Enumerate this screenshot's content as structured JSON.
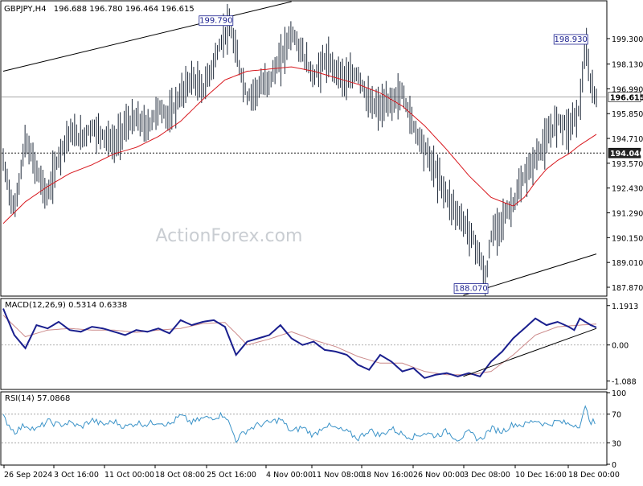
{
  "header": {
    "symbol": "GBPJPY,H4",
    "ohlc": "196.688 196.780 196.464 196.615"
  },
  "watermark": "ActionForex.com",
  "colors": {
    "price_bars": "#1f2a3a",
    "moving_average": "#d8191f",
    "trendline": "#000000",
    "macd_line": "#1a1f8e",
    "signal_line": "#cc8a8a",
    "rsi_line": "#3b93c8",
    "watermark": "#c9cdd2"
  },
  "chart_data": [
    {
      "name": "price",
      "type": "ohlc",
      "ylim": [
        187.5,
        201.0
      ],
      "y_ticks": [
        "199.300",
        "198.130",
        "196.990",
        "195.850",
        "194.710",
        "193.570",
        "192.430",
        "191.290",
        "190.150",
        "189.010",
        "187.870"
      ],
      "current_price_label": "196.615",
      "support_level_label": "194.040",
      "annotations": [
        "199.790",
        "198.930",
        "188.070"
      ],
      "close_series": [
        [
          0,
          193.6
        ],
        [
          2,
          191.3
        ],
        [
          4,
          194.6
        ],
        [
          6,
          193.3
        ],
        [
          8,
          192.0
        ],
        [
          10,
          193.9
        ],
        [
          12,
          195.0
        ],
        [
          14,
          194.7
        ],
        [
          16,
          195.2
        ],
        [
          18,
          194.9
        ],
        [
          20,
          194.4
        ],
        [
          22,
          195.3
        ],
        [
          24,
          195.6
        ],
        [
          26,
          195.2
        ],
        [
          28,
          196.1
        ],
        [
          30,
          195.7
        ],
        [
          32,
          196.7
        ],
        [
          34,
          197.5
        ],
        [
          36,
          196.9
        ],
        [
          38,
          198.2
        ],
        [
          40,
          199.6
        ],
        [
          41,
          199.79
        ],
        [
          42,
          198.6
        ],
        [
          44,
          196.6
        ],
        [
          46,
          197.0
        ],
        [
          48,
          197.4
        ],
        [
          50,
          198.3
        ],
        [
          52,
          199.6
        ],
        [
          54,
          198.6
        ],
        [
          56,
          197.5
        ],
        [
          58,
          198.3
        ],
        [
          60,
          197.9
        ],
        [
          62,
          197.4
        ],
        [
          64,
          197.7
        ],
        [
          66,
          196.3
        ],
        [
          68,
          196.1
        ],
        [
          70,
          196.4
        ],
        [
          72,
          196.8
        ],
        [
          74,
          195.3
        ],
        [
          76,
          194.3
        ],
        [
          78,
          193.2
        ],
        [
          80,
          192.1
        ],
        [
          82,
          191.2
        ],
        [
          84,
          190.5
        ],
        [
          86,
          189.3
        ],
        [
          87,
          188.07
        ],
        [
          88,
          190.2
        ],
        [
          90,
          191.0
        ],
        [
          92,
          191.7
        ],
        [
          94,
          192.9
        ],
        [
          96,
          193.8
        ],
        [
          98,
          194.6
        ],
        [
          100,
          195.6
        ],
        [
          102,
          195.2
        ],
        [
          104,
          196.1
        ],
        [
          105,
          198.93
        ],
        [
          106,
          197.1
        ],
        [
          107,
          196.615
        ]
      ],
      "moving_average": [
        [
          0,
          190.8
        ],
        [
          4,
          191.8
        ],
        [
          8,
          192.5
        ],
        [
          12,
          193.1
        ],
        [
          16,
          193.5
        ],
        [
          20,
          194.0
        ],
        [
          24,
          194.3
        ],
        [
          28,
          194.8
        ],
        [
          32,
          195.5
        ],
        [
          36,
          196.5
        ],
        [
          40,
          197.4
        ],
        [
          44,
          197.8
        ],
        [
          48,
          197.9
        ],
        [
          52,
          198.0
        ],
        [
          56,
          197.8
        ],
        [
          60,
          197.5
        ],
        [
          64,
          197.2
        ],
        [
          68,
          196.8
        ],
        [
          72,
          196.2
        ],
        [
          76,
          195.3
        ],
        [
          80,
          194.2
        ],
        [
          84,
          193.0
        ],
        [
          88,
          192.0
        ],
        [
          90,
          191.8
        ],
        [
          92,
          191.6
        ],
        [
          94,
          192.0
        ],
        [
          96,
          192.7
        ],
        [
          98,
          193.3
        ],
        [
          100,
          193.7
        ],
        [
          102,
          194.0
        ],
        [
          104,
          194.4
        ],
        [
          107,
          194.9
        ]
      ],
      "trendlines": [
        {
          "from": [
            0,
            197.8
          ],
          "to": [
            52,
            201.0
          ]
        },
        {
          "from": [
            83,
            187.5
          ],
          "to": [
            107,
            189.4
          ]
        }
      ]
    },
    {
      "name": "MACD(12,26,9) 0.5314 0.6338",
      "type": "line",
      "ylim": [
        -1.32,
        1.38
      ],
      "y_ticks": [
        "1.1913",
        "0.00",
        "-1.088"
      ],
      "macd": [
        [
          0,
          1.1
        ],
        [
          2,
          0.3
        ],
        [
          4,
          -0.1
        ],
        [
          6,
          0.6
        ],
        [
          8,
          0.5
        ],
        [
          10,
          0.7
        ],
        [
          12,
          0.45
        ],
        [
          14,
          0.4
        ],
        [
          16,
          0.55
        ],
        [
          18,
          0.5
        ],
        [
          20,
          0.4
        ],
        [
          22,
          0.3
        ],
        [
          24,
          0.45
        ],
        [
          26,
          0.4
        ],
        [
          28,
          0.5
        ],
        [
          30,
          0.35
        ],
        [
          32,
          0.75
        ],
        [
          34,
          0.6
        ],
        [
          36,
          0.7
        ],
        [
          38,
          0.75
        ],
        [
          40,
          0.55
        ],
        [
          42,
          -0.3
        ],
        [
          44,
          0.1
        ],
        [
          46,
          0.2
        ],
        [
          48,
          0.3
        ],
        [
          50,
          0.6
        ],
        [
          52,
          0.2
        ],
        [
          54,
          0.0
        ],
        [
          56,
          0.1
        ],
        [
          58,
          -0.15
        ],
        [
          60,
          -0.2
        ],
        [
          62,
          -0.3
        ],
        [
          64,
          -0.6
        ],
        [
          66,
          -0.75
        ],
        [
          68,
          -0.3
        ],
        [
          70,
          -0.5
        ],
        [
          72,
          -0.8
        ],
        [
          74,
          -0.7
        ],
        [
          76,
          -1.0
        ],
        [
          78,
          -0.9
        ],
        [
          80,
          -0.85
        ],
        [
          82,
          -0.95
        ],
        [
          84,
          -0.85
        ],
        [
          86,
          -0.95
        ],
        [
          88,
          -0.5
        ],
        [
          90,
          -0.2
        ],
        [
          92,
          0.2
        ],
        [
          94,
          0.5
        ],
        [
          96,
          0.8
        ],
        [
          98,
          0.6
        ],
        [
          100,
          0.7
        ],
        [
          102,
          0.55
        ],
        [
          103,
          0.45
        ],
        [
          104,
          0.8
        ],
        [
          106,
          0.6
        ],
        [
          107,
          0.5314
        ]
      ],
      "signal": [
        [
          0,
          0.9
        ],
        [
          4,
          0.25
        ],
        [
          8,
          0.45
        ],
        [
          12,
          0.5
        ],
        [
          16,
          0.45
        ],
        [
          20,
          0.45
        ],
        [
          24,
          0.38
        ],
        [
          28,
          0.45
        ],
        [
          32,
          0.5
        ],
        [
          36,
          0.65
        ],
        [
          40,
          0.68
        ],
        [
          42,
          0.35
        ],
        [
          44,
          0.0
        ],
        [
          48,
          0.18
        ],
        [
          52,
          0.4
        ],
        [
          56,
          0.15
        ],
        [
          60,
          -0.05
        ],
        [
          64,
          -0.35
        ],
        [
          68,
          -0.55
        ],
        [
          72,
          -0.55
        ],
        [
          76,
          -0.8
        ],
        [
          80,
          -0.9
        ],
        [
          84,
          -0.9
        ],
        [
          88,
          -0.8
        ],
        [
          92,
          -0.3
        ],
        [
          96,
          0.3
        ],
        [
          100,
          0.55
        ],
        [
          104,
          0.6
        ],
        [
          107,
          0.6338
        ]
      ],
      "trendline": {
        "from": [
          83,
          -0.95
        ],
        "to": [
          107,
          0.5
        ]
      }
    },
    {
      "name": "RSI(14) 57.0868",
      "type": "line",
      "ylim": [
        0,
        100
      ],
      "y_ticks": [
        "100",
        "70",
        "30",
        "0"
      ],
      "levels": [
        70,
        30
      ],
      "rsi": [
        [
          0,
          66
        ],
        [
          2,
          45
        ],
        [
          4,
          55
        ],
        [
          6,
          48
        ],
        [
          8,
          60
        ],
        [
          10,
          55
        ],
        [
          12,
          58
        ],
        [
          14,
          52
        ],
        [
          16,
          62
        ],
        [
          18,
          55
        ],
        [
          20,
          60
        ],
        [
          22,
          52
        ],
        [
          24,
          58
        ],
        [
          26,
          56
        ],
        [
          28,
          60
        ],
        [
          30,
          55
        ],
        [
          32,
          68
        ],
        [
          34,
          58
        ],
        [
          36,
          64
        ],
        [
          38,
          66
        ],
        [
          40,
          70
        ],
        [
          42,
          34
        ],
        [
          44,
          48
        ],
        [
          46,
          55
        ],
        [
          48,
          58
        ],
        [
          50,
          63
        ],
        [
          52,
          45
        ],
        [
          54,
          52
        ],
        [
          56,
          40
        ],
        [
          58,
          55
        ],
        [
          60,
          50
        ],
        [
          62,
          45
        ],
        [
          64,
          36
        ],
        [
          66,
          48
        ],
        [
          68,
          40
        ],
        [
          70,
          50
        ],
        [
          72,
          42
        ],
        [
          74,
          38
        ],
        [
          76,
          44
        ],
        [
          78,
          40
        ],
        [
          80,
          46
        ],
        [
          82,
          35
        ],
        [
          84,
          44
        ],
        [
          86,
          34
        ],
        [
          88,
          50
        ],
        [
          90,
          46
        ],
        [
          92,
          56
        ],
        [
          94,
          55
        ],
        [
          96,
          62
        ],
        [
          98,
          55
        ],
        [
          100,
          60
        ],
        [
          102,
          56
        ],
        [
          104,
          55
        ],
        [
          105,
          78
        ],
        [
          106,
          60
        ],
        [
          107,
          57.0868
        ]
      ]
    }
  ],
  "x_axis_labels": [
    "26 Sep 2024",
    "3 Oct 16:00",
    "11 Oct 00:00",
    "18 Oct 08:00",
    "25 Oct 16:00",
    "4 Nov 00:00",
    "11 Nov 08:00",
    "18 Nov 16:00",
    "26 Nov 00:00",
    "3 Dec 08:00",
    "10 Dec 16:00",
    "18 Dec 00:00"
  ]
}
